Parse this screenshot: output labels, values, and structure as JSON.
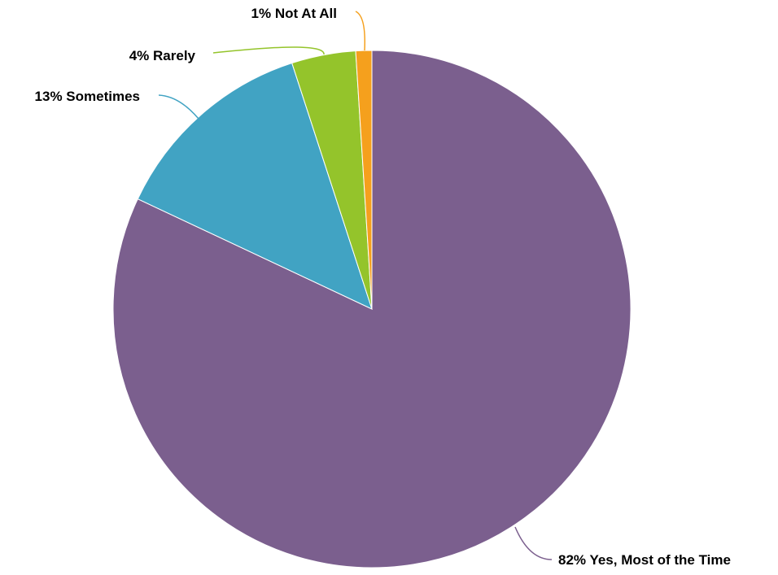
{
  "chart_data": {
    "type": "pie",
    "categories": [
      "Yes, Most of the Time",
      "Sometimes",
      "Rarely",
      "Not At All"
    ],
    "values": [
      82,
      13,
      4,
      1
    ],
    "value_labels": [
      "82%",
      "13%",
      "4%",
      "1%"
    ],
    "colors": [
      "#7b5f8e",
      "#41a3c3",
      "#94c42b",
      "#f5a01d"
    ]
  }
}
